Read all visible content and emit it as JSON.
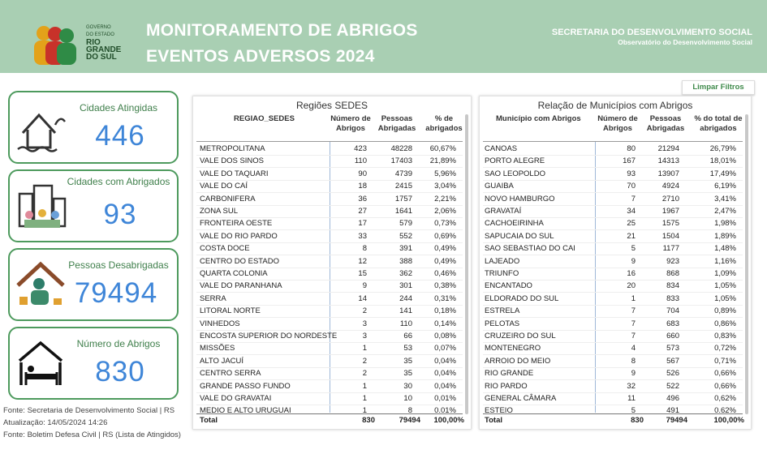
{
  "header": {
    "logo": [
      "GOVERNO",
      "DO ESTADO",
      "RIO",
      "GRANDE",
      "DO SUL"
    ],
    "title": [
      "MONITORAMENTO DE ABRIGOS",
      "EVENTOS ADVERSOS 2024"
    ],
    "org": "SECRETARIA DO DESENVOLVIMENTO SOCIAL",
    "suborg": "Observatório do Desenvolvimento Social"
  },
  "button": "Limpar Filtros",
  "cards": [
    {
      "title": "Cidades Atingidas",
      "value": 446
    },
    {
      "title": "Cidades com Abrigados",
      "value": 93
    },
    {
      "title": "Pessoas Desabrigadas",
      "value": 79494
    },
    {
      "title": "Número de Abrigos",
      "value": 830
    }
  ],
  "footer": [
    "Fonte: Secretaria de Desenvolvimento Social | RS",
    "Atualização: 14/05/2024 14:26",
    "Fonte: Boletim Defesa Civil | RS (Lista de Atingidos)"
  ],
  "tables": [
    {
      "title": "Regiões SEDES",
      "headers": [
        "REGIAO_SEDES",
        "Número de Abrigos",
        "Pessoas Abrigadas",
        "% de abrigados"
      ],
      "rows": [
        [
          "METROPOLITANA",
          423,
          48228,
          "60,67%"
        ],
        [
          "VALE DOS SINOS",
          110,
          17403,
          "21,89%"
        ],
        [
          "VALE DO TAQUARI",
          90,
          4739,
          "5,96%"
        ],
        [
          "VALE DO CAÍ",
          18,
          2415,
          "3,04%"
        ],
        [
          "CARBONIFERA",
          36,
          1757,
          "2,21%"
        ],
        [
          "ZONA SUL",
          27,
          1641,
          "2,06%"
        ],
        [
          "FRONTEIRA OESTE",
          17,
          579,
          "0,73%"
        ],
        [
          "VALE DO RIO PARDO",
          33,
          552,
          "0,69%"
        ],
        [
          "COSTA DOCE",
          8,
          391,
          "0,49%"
        ],
        [
          "CENTRO DO ESTADO",
          12,
          388,
          "0,49%"
        ],
        [
          "QUARTA COLONIA",
          15,
          362,
          "0,46%"
        ],
        [
          "VALE DO PARANHANA",
          9,
          301,
          "0,38%"
        ],
        [
          "SERRA",
          14,
          244,
          "0,31%"
        ],
        [
          "LITORAL NORTE",
          2,
          141,
          "0,18%"
        ],
        [
          "VINHEDOS",
          3,
          110,
          "0,14%"
        ],
        [
          "ENCOSTA SUPERIOR DO NORDESTE",
          3,
          66,
          "0,08%"
        ],
        [
          "MISSÕES",
          1,
          53,
          "0,07%"
        ],
        [
          "ALTO JACUÍ",
          2,
          35,
          "0,04%"
        ],
        [
          "CENTRO SERRA",
          2,
          35,
          "0,04%"
        ],
        [
          "GRANDE PASSO FUNDO",
          1,
          30,
          "0,04%"
        ],
        [
          "VALE DO GRAVATAI",
          1,
          10,
          "0,01%"
        ],
        [
          "MEDIO E ALTO URUGUAI",
          1,
          8,
          "0,01%"
        ]
      ],
      "total": [
        "Total",
        830,
        79494,
        "100,00%"
      ]
    },
    {
      "title": "Relação de Municípios com Abrigos",
      "headers": [
        "Município com Abrigos",
        "Número de Abrigos",
        "Pessoas Abrigadas",
        "% do total de abrigados"
      ],
      "rows": [
        [
          "CANOAS",
          80,
          21294,
          "26,79%"
        ],
        [
          "PORTO ALEGRE",
          167,
          14313,
          "18,01%"
        ],
        [
          "SAO LEOPOLDO",
          93,
          13907,
          "17,49%"
        ],
        [
          "GUAIBA",
          70,
          4924,
          "6,19%"
        ],
        [
          "NOVO HAMBURGO",
          7,
          2710,
          "3,41%"
        ],
        [
          "GRAVATAÍ",
          34,
          1967,
          "2,47%"
        ],
        [
          "CACHOEIRINHA",
          25,
          1575,
          "1,98%"
        ],
        [
          "SAPUCAIA DO SUL",
          21,
          1504,
          "1,89%"
        ],
        [
          "SAO SEBASTIAO DO CAI",
          5,
          1177,
          "1,48%"
        ],
        [
          "LAJEADO",
          9,
          923,
          "1,16%"
        ],
        [
          "TRIUNFO",
          16,
          868,
          "1,09%"
        ],
        [
          "ENCANTADO",
          20,
          834,
          "1,05%"
        ],
        [
          "ELDORADO DO SUL",
          1,
          833,
          "1,05%"
        ],
        [
          "ESTRELA",
          7,
          704,
          "0,89%"
        ],
        [
          "PELOTAS",
          7,
          683,
          "0,86%"
        ],
        [
          "CRUZEIRO DO SUL",
          7,
          660,
          "0,83%"
        ],
        [
          "MONTENEGRO",
          4,
          573,
          "0,72%"
        ],
        [
          "ARROIO DO MEIO",
          8,
          567,
          "0,71%"
        ],
        [
          "RIO GRANDE",
          9,
          526,
          "0,66%"
        ],
        [
          "RIO PARDO",
          32,
          522,
          "0,66%"
        ],
        [
          "GENERAL CÂMARA",
          11,
          496,
          "0,62%"
        ],
        [
          "ESTEIO",
          5,
          491,
          "0,62%"
        ]
      ],
      "total": [
        "Total",
        830,
        79494,
        "100,00%"
      ]
    }
  ]
}
